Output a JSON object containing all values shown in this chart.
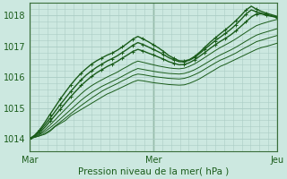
{
  "title": "Pression niveau de la mer( hPa )",
  "bg_color": "#cce8e0",
  "grid_color": "#aaccC4",
  "line_color": "#1a5c1a",
  "spine_color": "#3a6e3a",
  "ylim": [
    1013.6,
    1018.4
  ],
  "yticks": [
    1014,
    1015,
    1016,
    1017,
    1018
  ],
  "xtick_labels": [
    "Mar",
    "Mer",
    "Jeu"
  ],
  "xtick_positions": [
    0.0,
    0.5,
    1.0
  ],
  "n_points": 49,
  "series": [
    {
      "y": [
        1014.0,
        1014.05,
        1014.1,
        1014.15,
        1014.25,
        1014.4,
        1014.5,
        1014.6,
        1014.75,
        1014.85,
        1014.95,
        1015.05,
        1015.15,
        1015.25,
        1015.35,
        1015.45,
        1015.52,
        1015.6,
        1015.68,
        1015.76,
        1015.84,
        1015.9,
        1015.88,
        1015.85,
        1015.82,
        1015.8,
        1015.78,
        1015.76,
        1015.75,
        1015.74,
        1015.75,
        1015.8,
        1015.87,
        1015.95,
        1016.05,
        1016.15,
        1016.25,
        1016.35,
        1016.42,
        1016.5,
        1016.58,
        1016.66,
        1016.74,
        1016.82,
        1016.9,
        1016.96,
        1017.0,
        1017.05,
        1017.1
      ],
      "marker": false,
      "lw": 0.7
    },
    {
      "y": [
        1014.0,
        1014.05,
        1014.1,
        1014.18,
        1014.28,
        1014.42,
        1014.55,
        1014.68,
        1014.82,
        1014.95,
        1015.08,
        1015.2,
        1015.32,
        1015.43,
        1015.54,
        1015.63,
        1015.71,
        1015.79,
        1015.88,
        1015.96,
        1016.05,
        1016.1,
        1016.08,
        1016.05,
        1016.02,
        1016.0,
        1015.98,
        1015.96,
        1015.95,
        1015.94,
        1015.96,
        1016.01,
        1016.08,
        1016.16,
        1016.26,
        1016.36,
        1016.46,
        1016.55,
        1016.62,
        1016.7,
        1016.78,
        1016.88,
        1016.97,
        1017.06,
        1017.15,
        1017.2,
        1017.25,
        1017.3,
        1017.35
      ],
      "marker": false,
      "lw": 0.7
    },
    {
      "y": [
        1014.0,
        1014.06,
        1014.14,
        1014.24,
        1014.36,
        1014.5,
        1014.65,
        1014.8,
        1014.95,
        1015.1,
        1015.25,
        1015.38,
        1015.5,
        1015.6,
        1015.7,
        1015.78,
        1015.86,
        1015.94,
        1016.03,
        1016.12,
        1016.21,
        1016.28,
        1016.25,
        1016.22,
        1016.19,
        1016.16,
        1016.14,
        1016.12,
        1016.11,
        1016.1,
        1016.12,
        1016.17,
        1016.24,
        1016.33,
        1016.43,
        1016.53,
        1016.63,
        1016.72,
        1016.8,
        1016.88,
        1016.97,
        1017.07,
        1017.17,
        1017.27,
        1017.36,
        1017.42,
        1017.47,
        1017.52,
        1017.57
      ],
      "marker": false,
      "lw": 0.7
    },
    {
      "y": [
        1014.0,
        1014.07,
        1014.17,
        1014.3,
        1014.45,
        1014.62,
        1014.8,
        1014.97,
        1015.14,
        1015.3,
        1015.46,
        1015.6,
        1015.72,
        1015.82,
        1015.91,
        1016.0,
        1016.08,
        1016.16,
        1016.26,
        1016.35,
        1016.45,
        1016.52,
        1016.48,
        1016.44,
        1016.4,
        1016.36,
        1016.33,
        1016.3,
        1016.28,
        1016.27,
        1016.29,
        1016.35,
        1016.43,
        1016.53,
        1016.64,
        1016.75,
        1016.86,
        1016.96,
        1017.05,
        1017.14,
        1017.24,
        1017.35,
        1017.46,
        1017.57,
        1017.67,
        1017.73,
        1017.78,
        1017.83,
        1017.87
      ],
      "marker": false,
      "lw": 0.7
    },
    {
      "y": [
        1014.0,
        1014.09,
        1014.22,
        1014.38,
        1014.57,
        1014.77,
        1014.97,
        1015.17,
        1015.37,
        1015.55,
        1015.73,
        1015.88,
        1016.02,
        1016.14,
        1016.24,
        1016.34,
        1016.42,
        1016.51,
        1016.62,
        1016.72,
        1016.83,
        1016.9,
        1016.85,
        1016.78,
        1016.72,
        1016.65,
        1016.58,
        1016.5,
        1016.45,
        1016.4,
        1016.41,
        1016.47,
        1016.56,
        1016.68,
        1016.8,
        1016.93,
        1017.05,
        1017.16,
        1017.26,
        1017.37,
        1017.5,
        1017.65,
        1017.8,
        1017.95,
        1018.05,
        1018.05,
        1018.0,
        1017.97,
        1017.93
      ],
      "marker": true,
      "lw": 1.0
    },
    {
      "y": [
        1014.0,
        1014.1,
        1014.26,
        1014.46,
        1014.67,
        1014.9,
        1015.12,
        1015.33,
        1015.54,
        1015.73,
        1015.91,
        1016.07,
        1016.2,
        1016.32,
        1016.42,
        1016.52,
        1016.6,
        1016.69,
        1016.8,
        1016.91,
        1017.03,
        1017.12,
        1017.06,
        1016.98,
        1016.9,
        1016.82,
        1016.73,
        1016.63,
        1016.56,
        1016.5,
        1016.5,
        1016.55,
        1016.64,
        1016.77,
        1016.91,
        1017.05,
        1017.18,
        1017.3,
        1017.42,
        1017.55,
        1017.7,
        1017.87,
        1018.05,
        1018.18,
        1018.12,
        1018.07,
        1018.03,
        1017.98,
        1017.95
      ],
      "marker": true,
      "lw": 1.0
    },
    {
      "y": [
        1014.0,
        1014.12,
        1014.3,
        1014.54,
        1014.8,
        1015.05,
        1015.3,
        1015.53,
        1015.75,
        1015.95,
        1016.13,
        1016.28,
        1016.42,
        1016.53,
        1016.62,
        1016.71,
        1016.78,
        1016.87,
        1016.98,
        1017.1,
        1017.23,
        1017.32,
        1017.24,
        1017.15,
        1017.05,
        1016.95,
        1016.83,
        1016.7,
        1016.61,
        1016.53,
        1016.52,
        1016.57,
        1016.67,
        1016.81,
        1016.97,
        1017.13,
        1017.27,
        1017.41,
        1017.54,
        1017.68,
        1017.83,
        1018.0,
        1018.18,
        1018.3,
        1018.2,
        1018.13,
        1018.07,
        1018.02,
        1017.97
      ],
      "marker": true,
      "lw": 1.0
    }
  ],
  "marker_char": "+",
  "markersize": 3.5,
  "marker_every": 2
}
